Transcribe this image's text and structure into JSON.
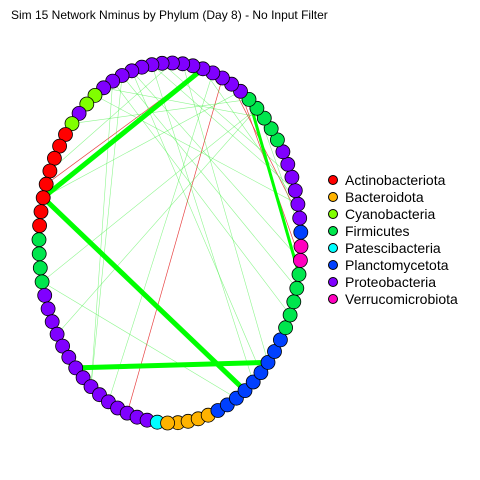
{
  "title": "Sim 15 Network Nminus by Phylum (Day 8) - No Input Filter",
  "legend": [
    {
      "label": "Actinobacteriota",
      "color": "#ff0000"
    },
    {
      "label": "Bacteroidota",
      "color": "#ffb300"
    },
    {
      "label": "Cyanobacteria",
      "color": "#80ff00"
    },
    {
      "label": "Firmicutes",
      "color": "#00e64d"
    },
    {
      "label": "Patescibacteria",
      "color": "#00ffff"
    },
    {
      "label": "Planctomycetota",
      "color": "#0040ff"
    },
    {
      "label": "Proteobacteria",
      "color": "#8000ff"
    },
    {
      "label": "Verrucomicrobiota",
      "color": "#ff00bf"
    }
  ],
  "nodes": [
    "Bacteroidota",
    "Bacteroidota",
    "Bacteroidota",
    "Bacteroidota",
    "Planctomycetota",
    "Planctomycetota",
    "Planctomycetota",
    "Planctomycetota",
    "Planctomycetota",
    "Planctomycetota",
    "Planctomycetota",
    "Planctomycetota",
    "Planctomycetota",
    "Firmicutes",
    "Firmicutes",
    "Firmicutes",
    "Firmicutes",
    "Firmicutes",
    "Verrucomicrobiota",
    "Verrucomicrobiota",
    "Planctomycetota",
    "Proteobacteria",
    "Proteobacteria",
    "Proteobacteria",
    "Proteobacteria",
    "Proteobacteria",
    "Proteobacteria",
    "Firmicutes",
    "Firmicutes",
    "Firmicutes",
    "Firmicutes",
    "Firmicutes",
    "Proteobacteria",
    "Proteobacteria",
    "Proteobacteria",
    "Proteobacteria",
    "Proteobacteria",
    "Proteobacteria",
    "Proteobacteria",
    "Proteobacteria",
    "Proteobacteria",
    "Proteobacteria",
    "Proteobacteria",
    "Proteobacteria",
    "Proteobacteria",
    "Proteobacteria",
    "Proteobacteria",
    "Cyanobacteria",
    "Cyanobacteria",
    "Proteobacteria",
    "Cyanobacteria",
    "Actinobacteriota",
    "Actinobacteriota",
    "Actinobacteriota",
    "Actinobacteriota",
    "Actinobacteriota",
    "Actinobacteriota",
    "Actinobacteriota",
    "Actinobacteriota",
    "Firmicutes",
    "Firmicutes",
    "Firmicutes",
    "Firmicutes",
    "Proteobacteria",
    "Proteobacteria",
    "Proteobacteria",
    "Proteobacteria",
    "Proteobacteria",
    "Proteobacteria",
    "Proteobacteria",
    "Proteobacteria",
    "Proteobacteria",
    "Proteobacteria",
    "Proteobacteria",
    "Proteobacteria",
    "Proteobacteria",
    "Proteobacteria",
    "Proteobacteria",
    "Patescibacteria",
    "Bacteroidota"
  ],
  "edges": [
    {
      "from": 56,
      "to": 36,
      "sign": "positive",
      "strength": 5
    },
    {
      "from": 56,
      "to": 7,
      "sign": "positive",
      "strength": 5
    },
    {
      "from": 69,
      "to": 10,
      "sign": "positive",
      "strength": 5
    },
    {
      "from": 31,
      "to": 17,
      "sign": "positive",
      "strength": 3
    },
    {
      "from": 55,
      "to": 36,
      "sign": "negative",
      "strength": 1
    },
    {
      "from": 48,
      "to": 43,
      "sign": "negative",
      "strength": 1
    },
    {
      "from": 21,
      "to": 33,
      "sign": "negative",
      "strength": 1
    },
    {
      "from": 75,
      "to": 34,
      "sign": "negative",
      "strength": 1
    },
    {
      "from": 18,
      "to": 32,
      "sign": "negative",
      "strength": 1
    },
    {
      "from": 56,
      "to": 32,
      "sign": "positive",
      "strength": 1
    },
    {
      "from": 62,
      "to": 30,
      "sign": "positive",
      "strength": 1
    },
    {
      "from": 71,
      "to": 45,
      "sign": "positive",
      "strength": 1
    },
    {
      "from": 71,
      "to": 44,
      "sign": "positive",
      "strength": 1
    },
    {
      "from": 45,
      "to": 14,
      "sign": "positive",
      "strength": 1
    },
    {
      "from": 44,
      "to": 16,
      "sign": "positive",
      "strength": 1
    },
    {
      "from": 30,
      "to": 20,
      "sign": "positive",
      "strength": 1
    },
    {
      "from": 47,
      "to": 22,
      "sign": "positive",
      "strength": 1
    },
    {
      "from": 41,
      "to": 8,
      "sign": "positive",
      "strength": 1
    },
    {
      "from": 38,
      "to": 10,
      "sign": "positive",
      "strength": 1
    },
    {
      "from": 43,
      "to": 9,
      "sign": "positive",
      "strength": 1
    },
    {
      "from": 46,
      "to": 29,
      "sign": "positive",
      "strength": 1
    },
    {
      "from": 66,
      "to": 30,
      "sign": "positive",
      "strength": 1
    },
    {
      "from": 62,
      "to": 6,
      "sign": "positive",
      "strength": 1
    },
    {
      "from": 50,
      "to": 31,
      "sign": "positive",
      "strength": 1
    },
    {
      "from": 73,
      "to": 35,
      "sign": "positive",
      "strength": 1
    },
    {
      "from": 43,
      "to": 18,
      "sign": "positive",
      "strength": 1
    },
    {
      "from": 36,
      "to": 22,
      "sign": "positive",
      "strength": 1
    },
    {
      "from": 41,
      "to": 23,
      "sign": "positive",
      "strength": 1
    },
    {
      "from": 54,
      "to": 39,
      "sign": "positive",
      "strength": 1
    },
    {
      "from": 40,
      "to": 24,
      "sign": "positive",
      "strength": 1
    }
  ]
}
